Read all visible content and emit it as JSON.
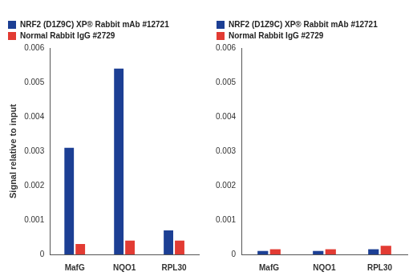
{
  "chart_data": [
    {
      "type": "bar",
      "y_label": "Signal relative to input",
      "categories": [
        "MafG",
        "NQO1",
        "RPL30"
      ],
      "series": [
        {
          "name": "NRF2 (D1Z9C) XP® Rabbit mAb #12721",
          "color": "#1c3f94",
          "values": [
            0.0031,
            0.0054,
            0.0007
          ]
        },
        {
          "name": "Normal Rabbit IgG #2729",
          "color": "#e23b33",
          "values": [
            0.0003,
            0.0004,
            0.0004
          ]
        }
      ],
      "ylim": [
        0,
        0.006
      ],
      "yticks": [
        0,
        0.001,
        0.002,
        0.003,
        0.004,
        0.005,
        0.006
      ],
      "grid": false,
      "legend": "top"
    },
    {
      "type": "bar",
      "categories": [
        "MafG",
        "NQO1",
        "RPL30"
      ],
      "series": [
        {
          "name": "NRF2 (D1Z9C) XP® Rabbit mAb #12721",
          "color": "#1c3f94",
          "values": [
            0.0001,
            0.0001,
            0.00015
          ]
        },
        {
          "name": "Normal Rabbit IgG #2729",
          "color": "#e23b33",
          "values": [
            0.00015,
            0.00015,
            0.00025
          ]
        }
      ],
      "ylim": [
        0,
        0.006
      ],
      "yticks": [
        0,
        0.001,
        0.002,
        0.003,
        0.004,
        0.005,
        0.006
      ],
      "grid": false,
      "legend": "top"
    }
  ]
}
